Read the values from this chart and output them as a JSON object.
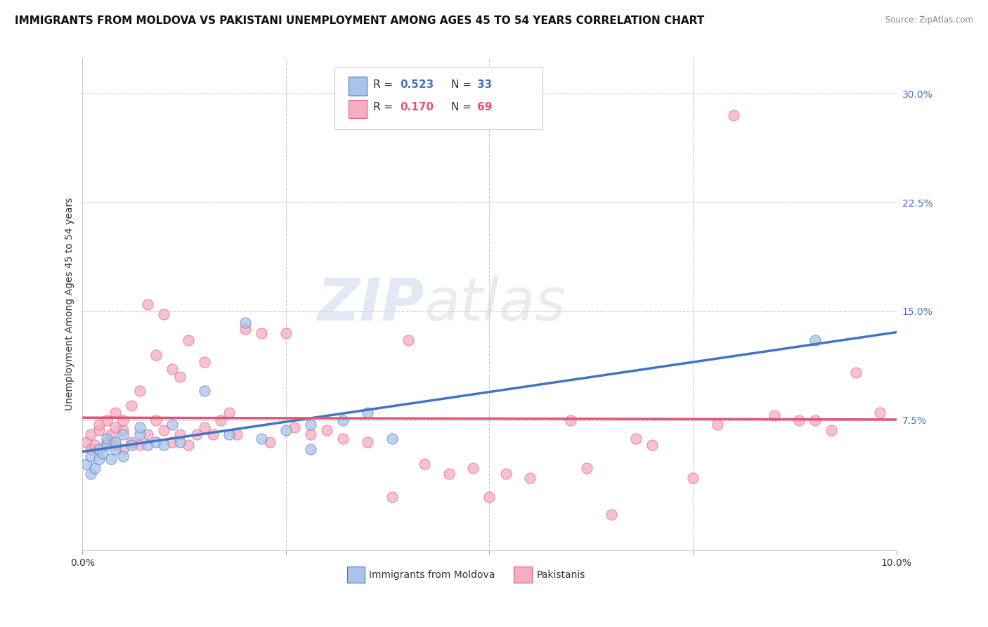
{
  "title": "IMMIGRANTS FROM MOLDOVA VS PAKISTANI UNEMPLOYMENT AMONG AGES 45 TO 54 YEARS CORRELATION CHART",
  "source": "Source: ZipAtlas.com",
  "ylabel": "Unemployment Among Ages 45 to 54 years",
  "yticks": [
    0.0,
    0.075,
    0.15,
    0.225,
    0.3
  ],
  "ytick_labels": [
    "",
    "7.5%",
    "15.0%",
    "22.5%",
    "30.0%"
  ],
  "xlim": [
    0.0,
    0.1
  ],
  "ylim": [
    -0.015,
    0.325
  ],
  "legend_r_moldova": "R = 0.523",
  "legend_n_moldova": "N = 33",
  "legend_r_pakistani": "R = 0.170",
  "legend_n_pakistani": "N = 69",
  "moldova_color": "#a8c4e8",
  "pakistani_color": "#f5adc0",
  "trend_moldova_color": "#4472c4",
  "trend_pakistani_color": "#e05575",
  "background_color": "#ffffff",
  "moldova_x": [
    0.0005,
    0.001,
    0.001,
    0.0015,
    0.002,
    0.002,
    0.0025,
    0.003,
    0.003,
    0.0035,
    0.004,
    0.004,
    0.005,
    0.005,
    0.006,
    0.007,
    0.007,
    0.008,
    0.009,
    0.01,
    0.011,
    0.012,
    0.015,
    0.018,
    0.02,
    0.022,
    0.025,
    0.028,
    0.032,
    0.035,
    0.038,
    0.09,
    0.028
  ],
  "moldova_y": [
    0.045,
    0.038,
    0.05,
    0.042,
    0.048,
    0.055,
    0.052,
    0.058,
    0.062,
    0.048,
    0.055,
    0.06,
    0.05,
    0.065,
    0.058,
    0.065,
    0.07,
    0.058,
    0.06,
    0.058,
    0.072,
    0.06,
    0.095,
    0.065,
    0.142,
    0.062,
    0.068,
    0.072,
    0.075,
    0.08,
    0.062,
    0.13,
    0.055
  ],
  "pakistani_x": [
    0.0005,
    0.001,
    0.001,
    0.0015,
    0.002,
    0.002,
    0.003,
    0.003,
    0.0035,
    0.004,
    0.004,
    0.004,
    0.005,
    0.005,
    0.005,
    0.006,
    0.006,
    0.007,
    0.007,
    0.008,
    0.008,
    0.009,
    0.009,
    0.01,
    0.01,
    0.011,
    0.011,
    0.012,
    0.012,
    0.013,
    0.013,
    0.014,
    0.015,
    0.015,
    0.016,
    0.017,
    0.018,
    0.019,
    0.02,
    0.022,
    0.023,
    0.025,
    0.026,
    0.028,
    0.03,
    0.032,
    0.035,
    0.038,
    0.04,
    0.042,
    0.045,
    0.048,
    0.05,
    0.052,
    0.055,
    0.06,
    0.062,
    0.065,
    0.068,
    0.07,
    0.075,
    0.078,
    0.08,
    0.085,
    0.088,
    0.09,
    0.092,
    0.095,
    0.098
  ],
  "pakistani_y": [
    0.06,
    0.055,
    0.065,
    0.058,
    0.068,
    0.072,
    0.06,
    0.075,
    0.065,
    0.058,
    0.07,
    0.08,
    0.055,
    0.068,
    0.075,
    0.06,
    0.085,
    0.058,
    0.095,
    0.065,
    0.155,
    0.075,
    0.12,
    0.068,
    0.148,
    0.06,
    0.11,
    0.065,
    0.105,
    0.058,
    0.13,
    0.065,
    0.07,
    0.115,
    0.065,
    0.075,
    0.08,
    0.065,
    0.138,
    0.135,
    0.06,
    0.135,
    0.07,
    0.065,
    0.068,
    0.062,
    0.06,
    0.022,
    0.13,
    0.045,
    0.038,
    0.042,
    0.022,
    0.038,
    0.035,
    0.075,
    0.042,
    0.01,
    0.062,
    0.058,
    0.035,
    0.072,
    0.285,
    0.078,
    0.075,
    0.075,
    0.068,
    0.108,
    0.08
  ],
  "gridline_color": "#cccccc",
  "tick_fontsize": 10,
  "legend_fontsize": 11
}
